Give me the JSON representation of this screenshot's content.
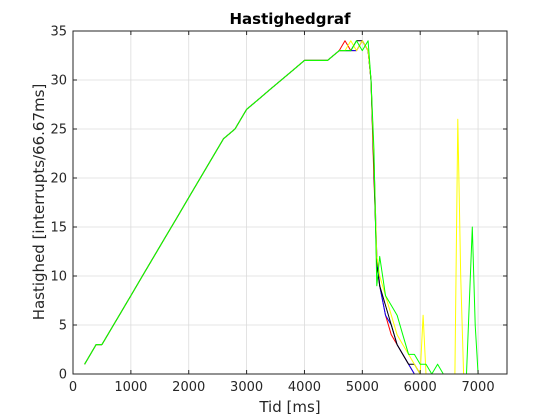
{
  "chart_data": {
    "type": "line",
    "title": "Hastighedgraf",
    "xlabel": "Tid [ms]",
    "ylabel": "Hastighed [interrupts/66.67ms]",
    "xlim": [
      0,
      7500
    ],
    "ylim": [
      0,
      35
    ],
    "xticks": [
      0,
      1000,
      2000,
      3000,
      4000,
      5000,
      6000,
      7000
    ],
    "yticks": [
      0,
      5,
      10,
      15,
      20,
      25,
      30,
      35
    ],
    "grid": true,
    "legend": "none",
    "series": [
      {
        "color": "#ff0000",
        "x": [
          200,
          400,
          500,
          700,
          800,
          1000,
          1200,
          1400,
          1600,
          1800,
          2000,
          2200,
          2400,
          2600,
          2800,
          3000,
          3200,
          3400,
          3600,
          3800,
          4000,
          4200,
          4400,
          4600,
          4700,
          4800,
          4900,
          5000,
          5100,
          5150,
          5200,
          5250,
          5300,
          5400,
          5500,
          5600,
          5700,
          5800,
          5900,
          6000,
          6100
        ],
        "y": [
          1,
          3,
          3,
          5,
          6,
          8,
          10,
          12,
          14,
          16,
          18,
          20,
          22,
          24,
          25,
          27,
          28,
          29,
          30,
          31,
          32,
          32,
          32,
          33,
          34,
          33,
          33,
          34,
          33,
          30,
          20,
          12,
          9,
          6,
          4,
          3,
          2,
          1,
          0,
          0,
          0
        ]
      },
      {
        "color": "#0000ff",
        "x": [
          200,
          400,
          500,
          700,
          800,
          1000,
          1200,
          1400,
          1600,
          1800,
          2000,
          2200,
          2400,
          2600,
          2800,
          3000,
          3200,
          3400,
          3600,
          3800,
          4000,
          4200,
          4400,
          4600,
          4700,
          4800,
          4900,
          5000,
          5100,
          5150,
          5200,
          5250,
          5300,
          5400,
          5500,
          5600,
          5700,
          5800,
          5900,
          6000,
          6100
        ],
        "y": [
          1,
          3,
          3,
          5,
          6,
          8,
          10,
          12,
          14,
          16,
          18,
          20,
          22,
          24,
          25,
          27,
          28,
          29,
          30,
          31,
          32,
          32,
          32,
          33,
          33,
          33,
          33,
          34,
          33,
          30,
          22,
          12,
          9,
          6,
          5,
          3,
          2,
          1,
          0,
          0,
          0
        ]
      },
      {
        "color": "#000000",
        "x": [
          200,
          400,
          500,
          700,
          800,
          1000,
          1200,
          1400,
          1600,
          1800,
          2000,
          2200,
          2400,
          2600,
          2800,
          3000,
          3200,
          3400,
          3600,
          3800,
          4000,
          4200,
          4400,
          4600,
          4700,
          4800,
          4900,
          5000,
          5100,
          5150,
          5200,
          5250,
          5300,
          5400,
          5500,
          5600,
          5700,
          5800,
          5900,
          6000,
          6100
        ],
        "y": [
          1,
          3,
          3,
          5,
          6,
          8,
          10,
          12,
          14,
          16,
          18,
          20,
          22,
          24,
          25,
          27,
          28,
          29,
          30,
          31,
          32,
          32,
          32,
          33,
          33,
          33,
          34,
          34,
          33,
          30,
          21,
          11,
          9,
          7,
          5,
          3,
          2,
          1,
          1,
          0,
          0
        ]
      },
      {
        "color": "#ffff00",
        "x": [
          200,
          400,
          500,
          700,
          800,
          1000,
          1200,
          1400,
          1600,
          1800,
          2000,
          2200,
          2400,
          2600,
          2800,
          3000,
          3200,
          3400,
          3600,
          3800,
          4000,
          4200,
          4400,
          4600,
          4700,
          4800,
          4900,
          5000,
          5100,
          5150,
          5200,
          5250,
          5300,
          5400,
          5500,
          5600,
          5700,
          5800,
          5900,
          6000,
          6050,
          6100,
          6150,
          6200,
          6600,
          6650,
          6700,
          6750
        ],
        "y": [
          1,
          3,
          3,
          5,
          6,
          8,
          10,
          12,
          14,
          16,
          18,
          20,
          22,
          24,
          25,
          27,
          28,
          29,
          30,
          31,
          32,
          32,
          32,
          33,
          33,
          34,
          33,
          34,
          33,
          30,
          22,
          12,
          10,
          8,
          6,
          4,
          3,
          2,
          1,
          0,
          6,
          0,
          0,
          0,
          0,
          26,
          10,
          0
        ]
      },
      {
        "color": "#00ff00",
        "x": [
          200,
          400,
          500,
          700,
          800,
          1000,
          1200,
          1400,
          1600,
          1800,
          2000,
          2200,
          2400,
          2600,
          2800,
          3000,
          3200,
          3400,
          3600,
          3800,
          4000,
          4200,
          4400,
          4600,
          4700,
          4800,
          4900,
          5000,
          5100,
          5150,
          5200,
          5250,
          5300,
          5400,
          5500,
          5600,
          5700,
          5800,
          5900,
          6000,
          6100,
          6200,
          6300,
          6400,
          6800,
          6900,
          6950,
          7000,
          7500
        ],
        "y": [
          1,
          3,
          3,
          5,
          6,
          8,
          10,
          12,
          14,
          16,
          18,
          20,
          22,
          24,
          25,
          27,
          28,
          29,
          30,
          31,
          32,
          32,
          32,
          33,
          33,
          33,
          34,
          33,
          34,
          30,
          23,
          9,
          12,
          8,
          7,
          6,
          4,
          2,
          2,
          1,
          1,
          0,
          1,
          0,
          0,
          15,
          5,
          0,
          0
        ]
      }
    ]
  }
}
